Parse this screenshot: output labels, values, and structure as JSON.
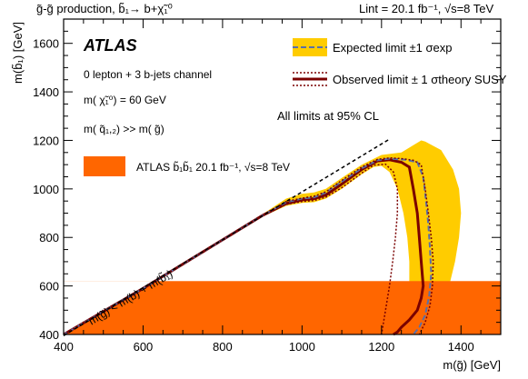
{
  "header": {
    "left": "g̃-g̃ production, b̃₁→ b+χ̃₁⁰",
    "right": "Lint = 20.1 fb⁻¹, √s=8 TeV"
  },
  "colors": {
    "exclusion_prior": "#ff6600",
    "expected_band": "#ffcc00",
    "expected_line": "#5a6fa8",
    "observed": "#7a0000",
    "kinematic": "#000000",
    "frame": "#000000"
  },
  "chart_data": {
    "type": "area",
    "title": "",
    "xlabel": "m(g̃) [GeV]",
    "ylabel": "m(b̃₁) [GeV]",
    "xlim": [
      400,
      1500
    ],
    "ylim": [
      400,
      1700
    ],
    "x_ticks": [
      400,
      600,
      800,
      1000,
      1200,
      1400
    ],
    "y_ticks": [
      400,
      600,
      800,
      1000,
      1200,
      1400,
      1600
    ],
    "x_tick_labels": [
      "400",
      "600",
      "800",
      "1000",
      "1200",
      "1400"
    ],
    "y_tick_labels": [
      "400",
      "600",
      "800",
      "1000",
      "1200",
      "1400",
      "1600"
    ],
    "experiment": "ATLAS",
    "channel": "0 lepton + 3 b-jets channel",
    "lsp_mass": "m( χ̃₁⁰) = 60 GeV",
    "squark_condition": "m( q̃₁,₂) >> m( g̃)",
    "cl_note": "All limits at 95% CL",
    "legend": {
      "placement": "top-right",
      "expected": "Expected limit ±1 σexp",
      "observed": "Observed limit ± 1 σtheory SUSY",
      "prior": "ATLAS b̃₁b̃₁ 20.1 fb⁻¹, √s=8 TeV"
    },
    "kinematic_label": "m(g̃) < m(b) + m(b̃₁)",
    "kinematic_line": {
      "x": [
        400,
        1220
      ],
      "y": [
        395,
        1205
      ]
    },
    "prior_exclusion": {
      "y_max": 620,
      "x_range": [
        400,
        1500
      ]
    },
    "series": [
      {
        "name": "Observed limit",
        "style": "observed",
        "x": [
          400,
          600,
          800,
          900,
          960,
          1000,
          1030,
          1060,
          1100,
          1150,
          1190,
          1220,
          1250,
          1270,
          1280,
          1290,
          1295,
          1300,
          1305,
          1300,
          1290,
          1270,
          1250,
          1240,
          1230
        ],
        "y": [
          400,
          590,
          790,
          890,
          940,
          955,
          960,
          975,
          1020,
          1080,
          1115,
          1120,
          1110,
          1090,
          1000,
          900,
          800,
          700,
          600,
          550,
          500,
          460,
          430,
          410,
          400
        ]
      },
      {
        "name": "Expected limit",
        "style": "expected",
        "x": [
          400,
          600,
          800,
          900,
          960,
          1000,
          1030,
          1060,
          1100,
          1150,
          1190,
          1220,
          1260,
          1290,
          1305,
          1312,
          1318,
          1322,
          1325,
          1320,
          1310,
          1295,
          1280
        ],
        "y": [
          400,
          590,
          790,
          890,
          945,
          960,
          965,
          985,
          1030,
          1085,
          1118,
          1125,
          1120,
          1110,
          1050,
          950,
          850,
          750,
          650,
          560,
          480,
          430,
          400
        ]
      },
      {
        "name": "Observed +1 σtheory",
        "style": "observed-dotted",
        "x": [
          400,
          600,
          800,
          900,
          960,
          1000,
          1030,
          1060,
          1100,
          1150,
          1190,
          1220,
          1250,
          1280,
          1300,
          1310,
          1318,
          1325,
          1330,
          1328,
          1322,
          1310,
          1295
        ],
        "y": [
          400,
          590,
          790,
          892,
          948,
          962,
          970,
          988,
          1035,
          1090,
          1122,
          1128,
          1125,
          1118,
          1100,
          1000,
          900,
          800,
          700,
          600,
          520,
          450,
          400
        ]
      },
      {
        "name": "Observed -1 σtheory",
        "style": "observed-dotted",
        "x": [
          400,
          600,
          800,
          900,
          960,
          1000,
          1030,
          1060,
          1100,
          1150,
          1180,
          1210,
          1230,
          1240,
          1240,
          1235,
          1228,
          1220,
          1212,
          1205,
          1200
        ],
        "y": [
          400,
          590,
          790,
          888,
          936,
          948,
          952,
          966,
          1005,
          1065,
          1098,
          1102,
          1070,
          1000,
          900,
          800,
          700,
          600,
          520,
          450,
          400
        ]
      }
    ],
    "expected_band": {
      "upper": {
        "x": [
          400,
          600,
          800,
          900,
          960,
          1000,
          1030,
          1060,
          1100,
          1150,
          1200,
          1250,
          1280,
          1300,
          1310,
          1350,
          1380,
          1395,
          1400,
          1395,
          1385,
          1370,
          1365
        ],
        "y": [
          400,
          592,
          792,
          895,
          960,
          980,
          985,
          1000,
          1045,
          1100,
          1140,
          1150,
          1180,
          1200,
          1195,
          1160,
          1080,
          1000,
          900,
          800,
          700,
          600,
          400
        ]
      },
      "lower": {
        "x": [
          400,
          600,
          800,
          900,
          960,
          1000,
          1030,
          1060,
          1100,
          1150,
          1180,
          1200,
          1220,
          1240,
          1255,
          1265,
          1270,
          1270,
          1265,
          1260,
          1255
        ],
        "y": [
          400,
          588,
          788,
          885,
          930,
          942,
          945,
          960,
          1000,
          1060,
          1090,
          1095,
          1070,
          1000,
          900,
          800,
          700,
          600,
          500,
          440,
          400
        ]
      }
    }
  }
}
